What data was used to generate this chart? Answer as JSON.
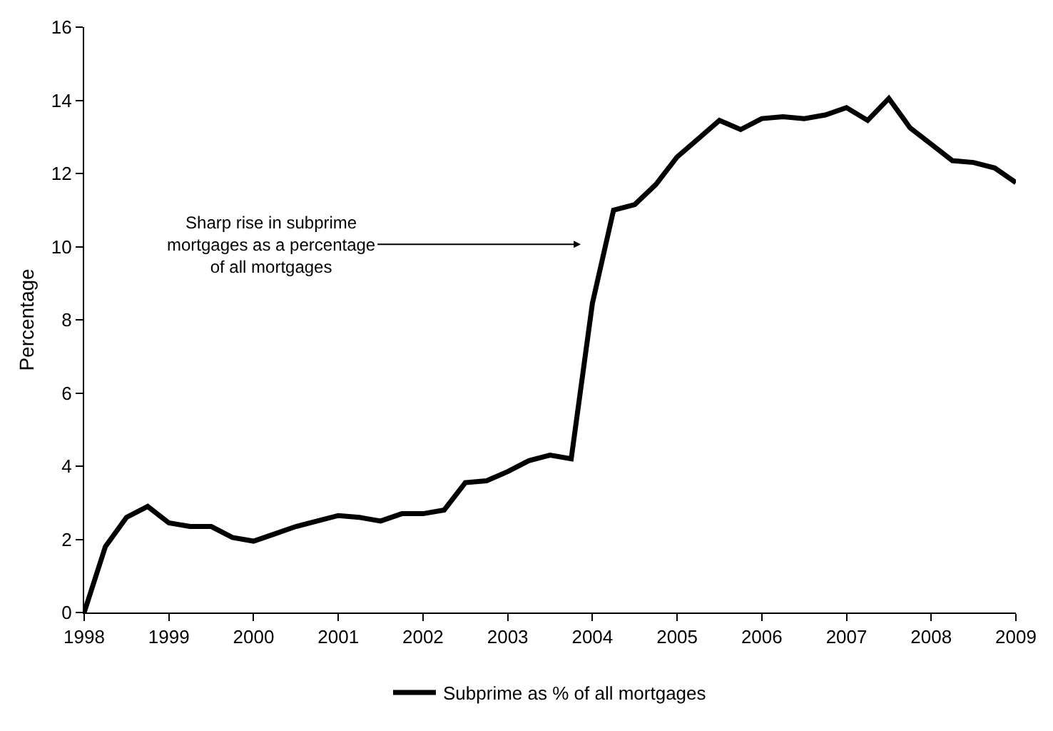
{
  "chart_data": {
    "type": "line",
    "ylabel": "Percentage",
    "x": [
      1998,
      1998.25,
      1998.5,
      1998.75,
      1999,
      1999.25,
      1999.5,
      1999.75,
      2000,
      2000.25,
      2000.5,
      2000.75,
      2001,
      2001.25,
      2001.5,
      2001.75,
      2002,
      2002.25,
      2002.5,
      2002.75,
      2003,
      2003.25,
      2003.5,
      2003.75,
      2004,
      2004.25,
      2004.5,
      2004.75,
      2005,
      2005.25,
      2005.5,
      2005.75,
      2006,
      2006.25,
      2006.5,
      2006.75,
      2007,
      2007.25,
      2007.5,
      2007.75,
      2008,
      2008.25,
      2008.5,
      2008.75,
      2009
    ],
    "series": [
      {
        "name": "Subprime as % of all mortgages",
        "color": "#000000",
        "values": [
          0,
          1.8,
          2.6,
          2.9,
          2.45,
          2.35,
          2.35,
          2.05,
          1.95,
          2.15,
          2.35,
          2.5,
          2.65,
          2.6,
          2.5,
          2.7,
          2.7,
          2.8,
          3.55,
          3.6,
          3.85,
          4.15,
          4.3,
          4.2,
          8.45,
          11.0,
          11.15,
          11.7,
          12.45,
          12.95,
          13.45,
          13.2,
          13.5,
          13.55,
          13.5,
          13.6,
          13.8,
          13.45,
          14.05,
          13.25,
          12.8,
          12.35,
          12.3,
          12.15,
          11.75
        ]
      }
    ],
    "xlim": [
      1998,
      2009
    ],
    "xticks": [
      1998,
      1999,
      2000,
      2001,
      2002,
      2003,
      2004,
      2005,
      2006,
      2007,
      2008,
      2009
    ],
    "ylim": [
      0,
      16
    ],
    "yticks": [
      0,
      2,
      4,
      6,
      8,
      10,
      12,
      14,
      16
    ],
    "annotations": [
      "Sharp rise in subprime\nmortgages as a percentage\nof all mortgages"
    ],
    "legend": "bottom",
    "marker": "none",
    "line_style": "solid"
  }
}
